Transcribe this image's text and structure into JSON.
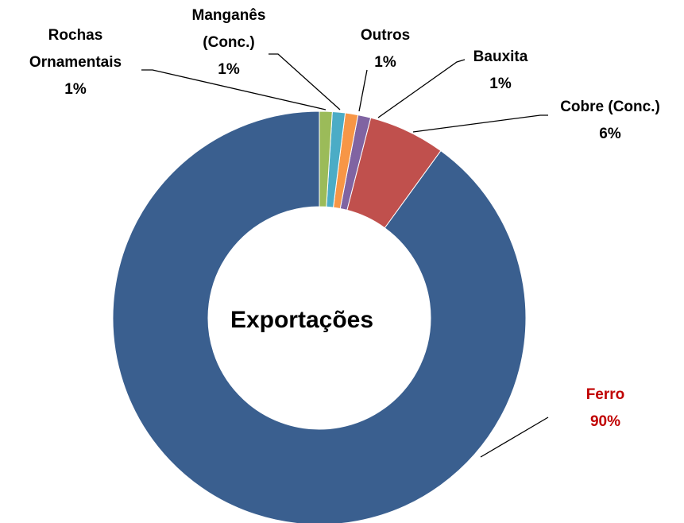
{
  "chart_data": {
    "type": "donut",
    "title": "Exportações",
    "categories": [
      "Rochas Ornamentais",
      "Manganês (Conc.)",
      "Outros",
      "Bauxita",
      "Cobre (Conc.)",
      "Ferro"
    ],
    "values": [
      1,
      1,
      1,
      1,
      6,
      90
    ],
    "value_labels": [
      "1%",
      "1%",
      "1%",
      "1%",
      "6%",
      "90%"
    ],
    "colors": [
      "#9bbb59",
      "#4bacc6",
      "#f79646",
      "#8064a2",
      "#c0504d",
      "#3a5f8f"
    ],
    "label_colors": [
      "#000000",
      "#000000",
      "#000000",
      "#000000",
      "#000000",
      "#c00000"
    ]
  }
}
